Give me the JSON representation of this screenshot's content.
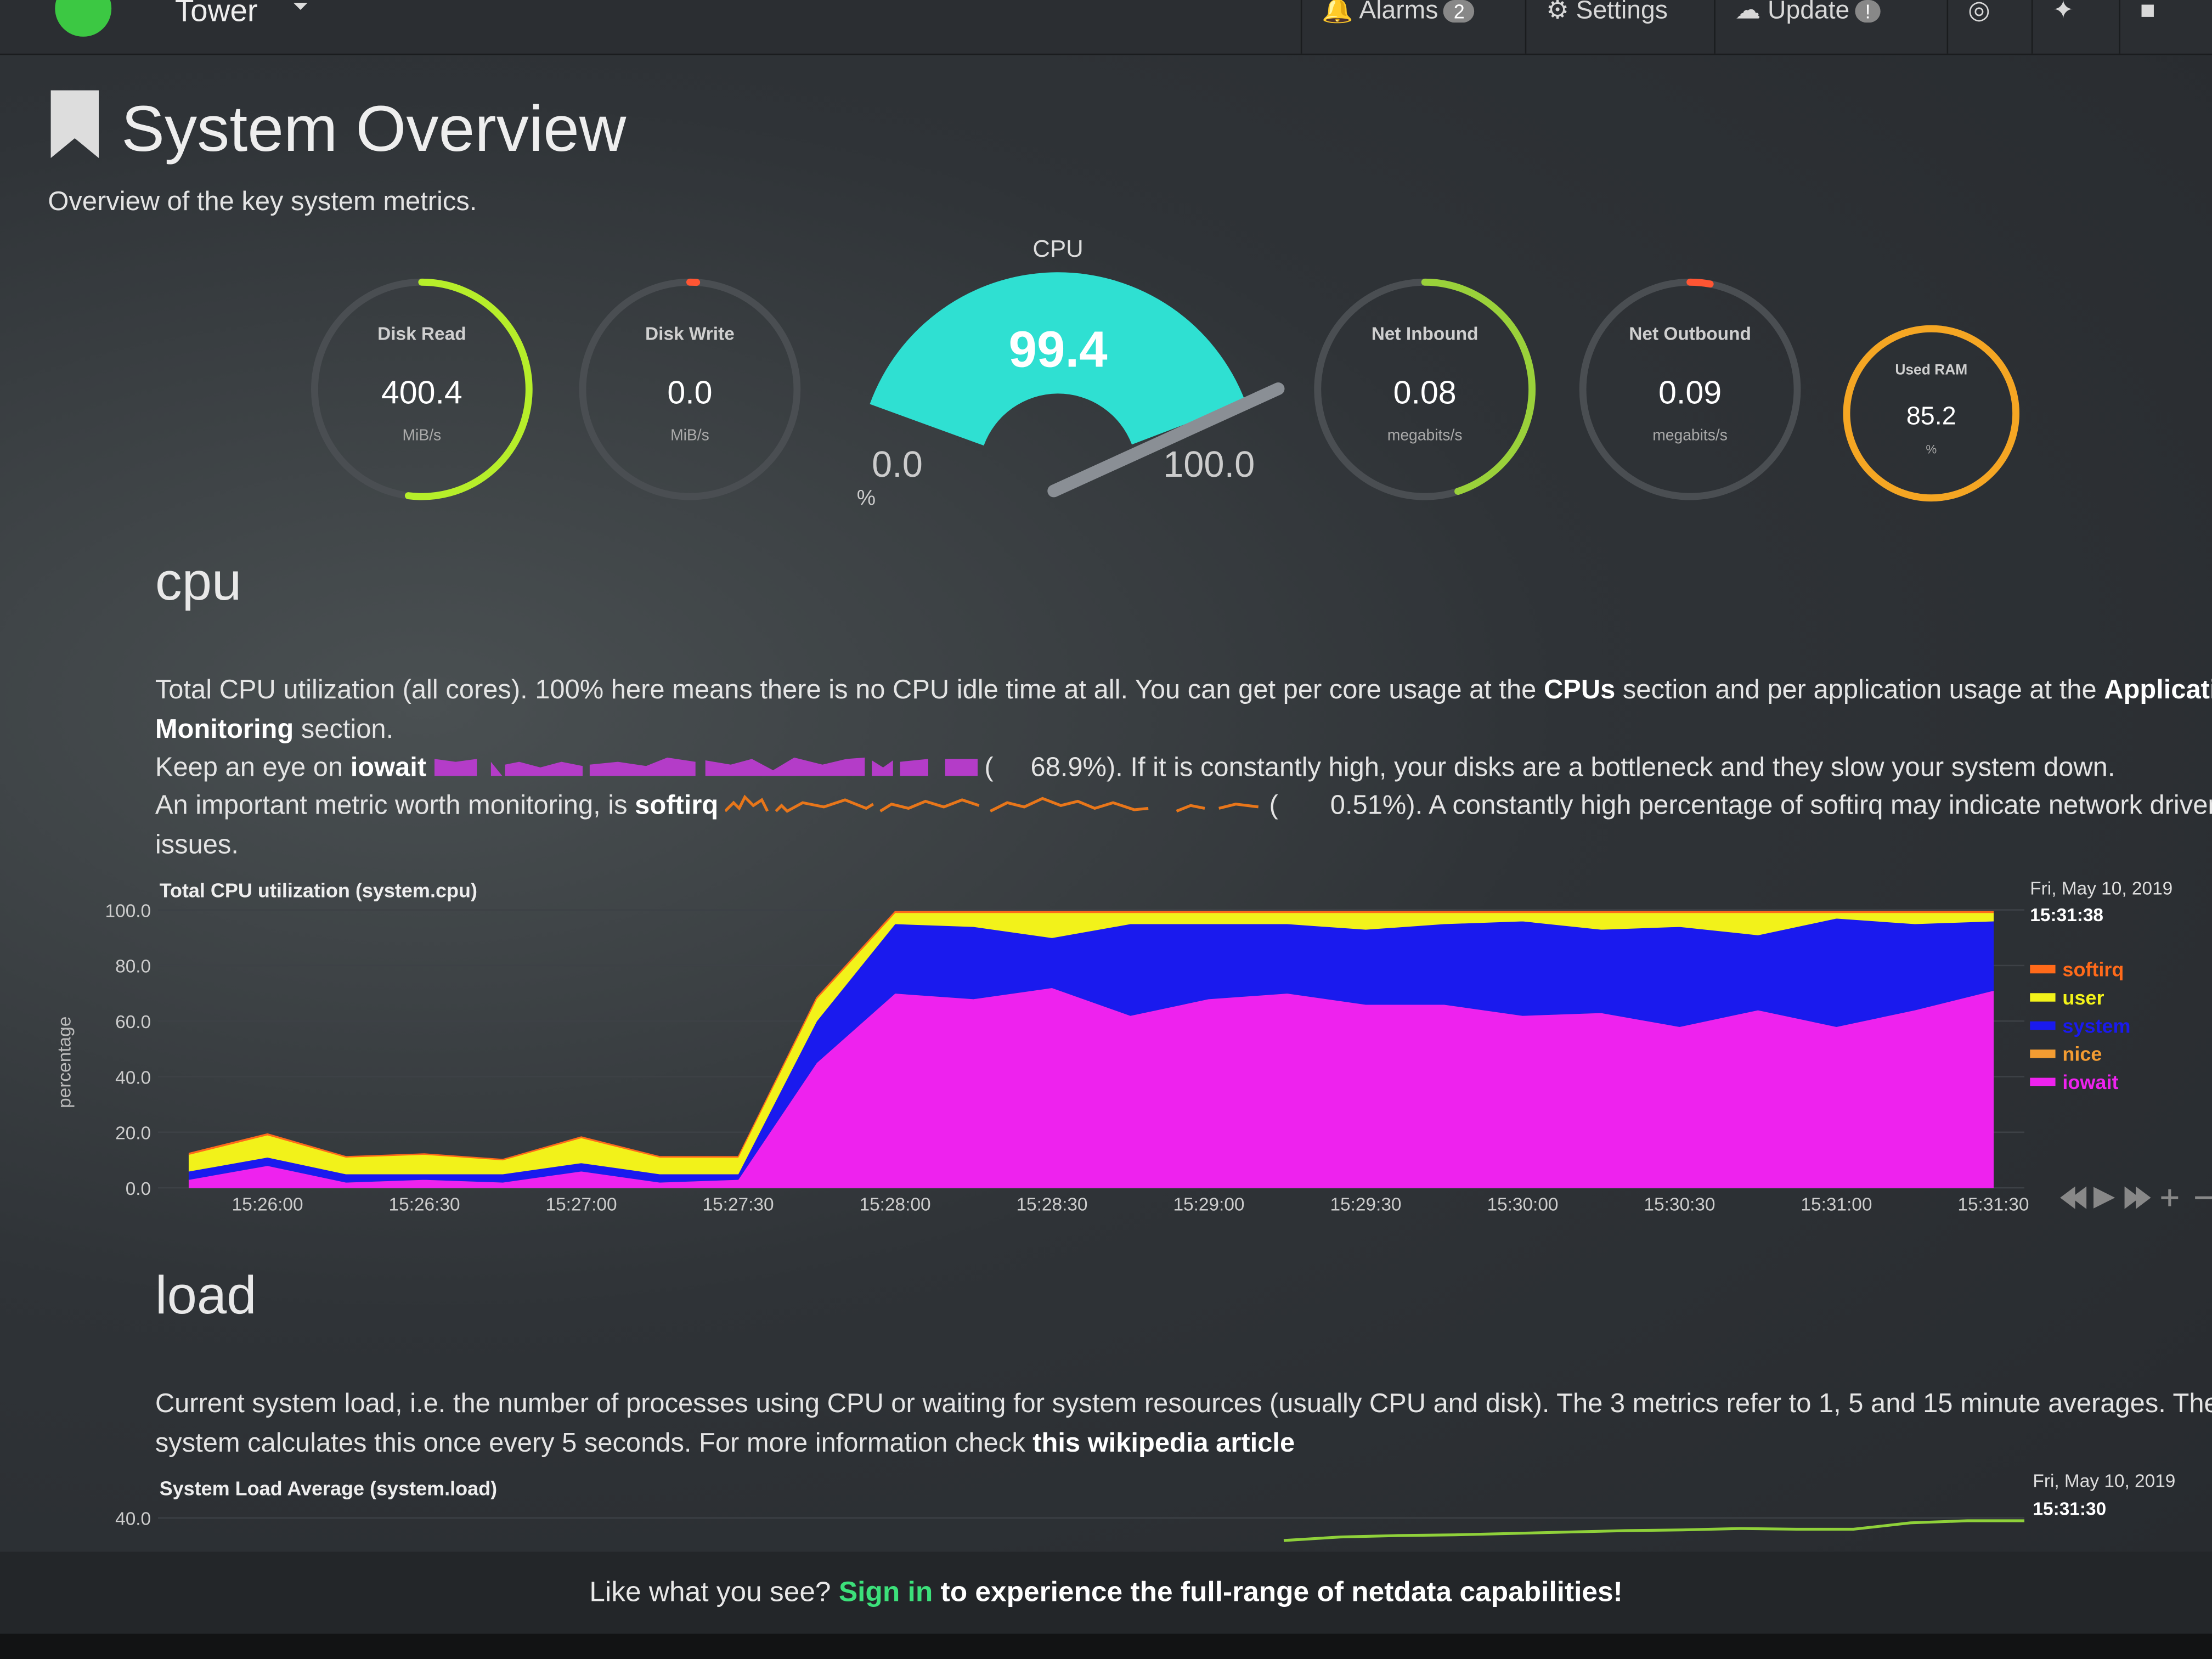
{
  "header": {
    "brand": "Tower",
    "alarms": "Alarms",
    "alarms_badge": "2",
    "settings": "Settings",
    "update": "Update",
    "update_badge": "!"
  },
  "page": {
    "title": "System Overview",
    "subtitle": "Overview of the key system metrics."
  },
  "gauges": [
    {
      "title": "Disk Read",
      "value": 400.4,
      "unit": "MiB/s",
      "fill_percent": 52,
      "color": "#b6ee2a"
    },
    {
      "title": "Disk Write",
      "value": 0,
      "value_label": "0.0",
      "unit": "MiB/s",
      "fill_percent": 1,
      "color": "#ff5533"
    },
    {
      "title": "Net Inbound",
      "value": 0.08,
      "unit": "megabits/s",
      "fill_percent": 45,
      "color": "#9ad13a"
    },
    {
      "title": "Net Outbound",
      "value": 0.09,
      "unit": "megabits/s",
      "fill_percent": 3,
      "color": "#ff5533"
    },
    {
      "title": "Used RAM",
      "value": 85.2,
      "unit": "%",
      "fill_percent": 100,
      "color": "#f5a623"
    }
  ],
  "cpu_gauge": {
    "title": "CPU",
    "value": 99.4,
    "min": {
      "value": 0,
      "label": "0.0"
    },
    "max": {
      "value": 100,
      "label": "100.0"
    },
    "unit": "%",
    "color": "#2fe0d2"
  },
  "cpu_section": {
    "heading": "cpu",
    "line1_a": "Total CPU utilization (all cores). 100% here means there is no CPU idle time at all. You can get per core usage at the ",
    "line1_b": "CPUs",
    "line1_c": " section and per application usage at the ",
    "line1_d": "Applications",
    "line2_a": "Monitoring",
    "line2_b": " section.",
    "line3_a": "Keep an eye on ",
    "line3_b": "iowait",
    "line3_c": "68.9%",
    "line3_d": "). If it is constantly high, your disks are a bottleneck and they slow your system down.",
    "line4_a": "An important metric worth monitoring, is ",
    "line4_b": "softirq",
    "line4_c": "0.51%",
    "line4_d": "). A constantly high percentage of softirq may indicate network drivers",
    "line5": "issues."
  },
  "load_section": {
    "heading": "load",
    "line1": "Current system load, i.e. the number of processes using CPU or waiting for system resources (usually CPU and disk). The 3 metrics refer to 1, 5 and 15 minute averages. The",
    "line2_a": "system calculates this once every 5 seconds. For more information check ",
    "line2_b": "this wikipedia article"
  },
  "chart_data": [
    {
      "type": "stacked-area",
      "title": "Total CPU utilization (system.cpu)",
      "y_label": "percentage",
      "date": "Fri, May 10, 2019",
      "time": "15:31:38",
      "x": [
        "15:25:45",
        "15:26:00",
        "15:26:15",
        "15:26:30",
        "15:26:45",
        "15:27:00",
        "15:27:15",
        "15:27:30",
        "15:27:45",
        "15:28:00",
        "15:28:15",
        "15:28:30",
        "15:28:45",
        "15:29:00",
        "15:29:15",
        "15:29:30",
        "15:29:45",
        "15:30:00",
        "15:30:15",
        "15:30:30",
        "15:30:45",
        "15:31:00",
        "15:31:15",
        "15:31:30"
      ],
      "xticks": [
        "15:26:00",
        "15:26:30",
        "15:27:00",
        "15:27:30",
        "15:28:00",
        "15:28:30",
        "15:29:00",
        "15:29:30",
        "15:30:00",
        "15:30:30",
        "15:31:00",
        "15:31:30"
      ],
      "ylim": [
        0,
        100
      ],
      "yticks": [
        {
          "value": 0,
          "label": "0.0"
        },
        {
          "value": 20,
          "label": "20.0"
        },
        {
          "value": 40,
          "label": "40.0"
        },
        {
          "value": 60,
          "label": "60.0"
        },
        {
          "value": 80,
          "label": "80.0"
        },
        {
          "value": 100,
          "label": "100.0"
        }
      ],
      "series": [
        {
          "name": "iowait",
          "color": "#ee22ee",
          "values": [
            3,
            8,
            2,
            3,
            2,
            6,
            2,
            3,
            45,
            70,
            68,
            72,
            62,
            68,
            70,
            66,
            66,
            62,
            63,
            58,
            64,
            58,
            64,
            71
          ]
        },
        {
          "name": "nice",
          "color": "#f39c32",
          "values": [
            0,
            0,
            0,
            0,
            0,
            0,
            0,
            0,
            0,
            0,
            0,
            0,
            0,
            0,
            0,
            0,
            0,
            0,
            0,
            0,
            0,
            0,
            0,
            0
          ]
        },
        {
          "name": "system",
          "color": "#1a1aee",
          "values": [
            3,
            3,
            3,
            2,
            3,
            3,
            3,
            2,
            15,
            25,
            26,
            18,
            33,
            27,
            25,
            27,
            29,
            34,
            30,
            36,
            27,
            39,
            31,
            25
          ]
        },
        {
          "name": "user",
          "color": "#f2f21a",
          "values": [
            6,
            8,
            6,
            7,
            5,
            9,
            6,
            6,
            8,
            4,
            5,
            9,
            4,
            4,
            4,
            6,
            4,
            3,
            6,
            5,
            8,
            2,
            4,
            3
          ]
        },
        {
          "name": "softirq",
          "color": "#ff6a1a",
          "values": [
            0.5,
            0.5,
            0.3,
            0.3,
            0.3,
            0.4,
            0.3,
            0.3,
            0.5,
            0.5,
            0.5,
            0.5,
            0.5,
            0.5,
            0.5,
            0.5,
            0.5,
            0.5,
            0.5,
            0.5,
            0.5,
            0.5,
            0.5,
            0.5
          ]
        }
      ]
    },
    {
      "type": "line",
      "title": "System Load Average (system.load)",
      "date": "Fri, May 10, 2019",
      "time": "15:31:30",
      "ylim": [
        0,
        40
      ],
      "yticks": [
        {
          "value": 40,
          "label": "40.0"
        }
      ],
      "series": [
        {
          "color": "#8fd13a",
          "values": [
            36.8,
            37.3,
            37.5,
            37.6,
            37.8,
            38.0,
            38.2,
            38.3,
            38.5,
            38.4,
            38.4,
            39.3,
            39.6,
            39.6
          ]
        }
      ]
    }
  ],
  "footer": {
    "a": "Like what you see? ",
    "b": "Sign in",
    "c": " to experience the full-range of netdata capabilities!"
  }
}
